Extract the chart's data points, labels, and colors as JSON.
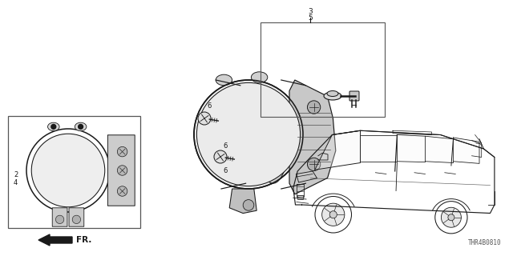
{
  "bg_color": "#ffffff",
  "ref_code": "THR4B0810",
  "dark": "#1a1a1a",
  "gray": "#444444",
  "lgray": "#888888"
}
